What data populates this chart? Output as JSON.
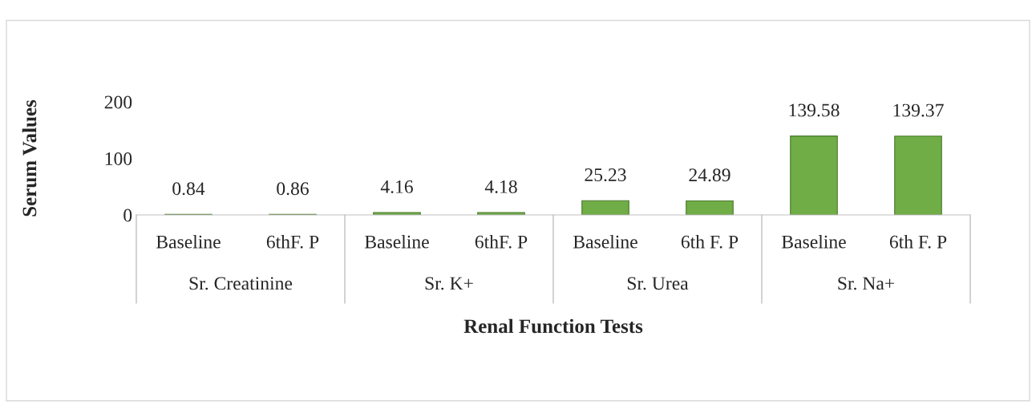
{
  "chart_data": {
    "type": "bar",
    "xlabel": "Renal Function Tests",
    "ylabel": "Serum Values",
    "categories": [
      "Baseline",
      "6thF. P",
      "Baseline",
      "6thF. P",
      "Baseline",
      "6th F. P",
      "Baseline",
      "6th F. P"
    ],
    "values": [
      0.84,
      0.86,
      4.16,
      4.18,
      25.23,
      24.89,
      139.58,
      139.37
    ],
    "color": "#70ad47",
    "ylim": [
      0,
      200
    ],
    "yticks": [
      0,
      100,
      200
    ],
    "data_labels": true,
    "grid": false,
    "legend": false,
    "annotations": [
      "Sr. Creatinine",
      "Sr. K+",
      "Sr. Urea",
      "Sr. Na+"
    ]
  }
}
